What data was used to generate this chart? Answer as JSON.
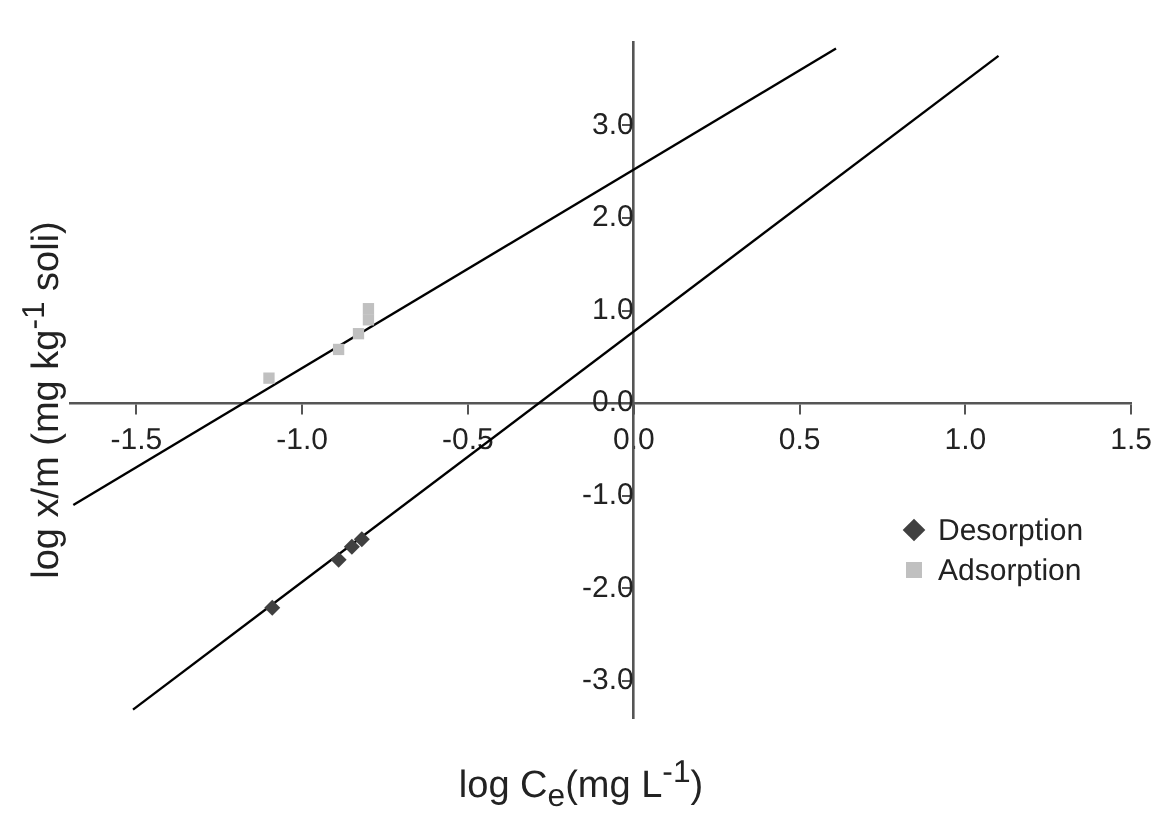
{
  "chart_data": {
    "type": "scatter",
    "xlabel": "log C$_{e}$(mg L$^{-1}$)",
    "ylabel": "log x/m (mg kg$^{-1}$ soli)",
    "xlim": [
      -1.7,
      1.5
    ],
    "ylim": [
      -3.4,
      3.9
    ],
    "xticks": [
      {
        "value": -1.5,
        "label": "-1.5"
      },
      {
        "value": -1,
        "label": "-1.0"
      },
      {
        "value": -0.5,
        "label": "-0.5"
      },
      {
        "value": 0,
        "label": "0.0"
      },
      {
        "value": 0.5,
        "label": "0.5"
      },
      {
        "value": 1,
        "label": "1.0"
      },
      {
        "value": 1.5,
        "label": "1.5"
      }
    ],
    "yticks": [
      {
        "value": -3,
        "label": "-3.0"
      },
      {
        "value": -2,
        "label": "-2.0"
      },
      {
        "value": -1,
        "label": "-1.0"
      },
      {
        "value": 0,
        "label": "0.0"
      },
      {
        "value": 1,
        "label": "1.0"
      },
      {
        "value": 2,
        "label": "2.0"
      },
      {
        "value": 3,
        "label": "3.0"
      }
    ],
    "grid": false,
    "legend": "bottom right",
    "series": [
      {
        "name": "Desorption",
        "type": "scatter",
        "marker": "diamond",
        "color": "#404040",
        "x": [
          -1.09,
          -0.89,
          -0.85,
          -0.82
        ],
        "values": [
          -2.21,
          -1.69,
          -1.55,
          -1.47
        ]
      },
      {
        "name": "Adsorption",
        "type": "scatter",
        "marker": "square",
        "color": "#c0c0c0",
        "x": [
          -1.1,
          -0.89,
          -0.83,
          -0.8,
          -0.8
        ],
        "values": [
          0.27,
          0.58,
          0.75,
          0.9,
          1.02
        ]
      },
      {
        "type": "line",
        "marker": "none",
        "color": "#000000",
        "x": [
          -1.69,
          0.61
        ],
        "values": [
          -1.1,
          3.83
        ]
      },
      {
        "type": "line",
        "marker": "none",
        "color": "#000000",
        "x": [
          -1.51,
          1.1
        ],
        "values": [
          -3.31,
          3.75
        ]
      }
    ]
  }
}
